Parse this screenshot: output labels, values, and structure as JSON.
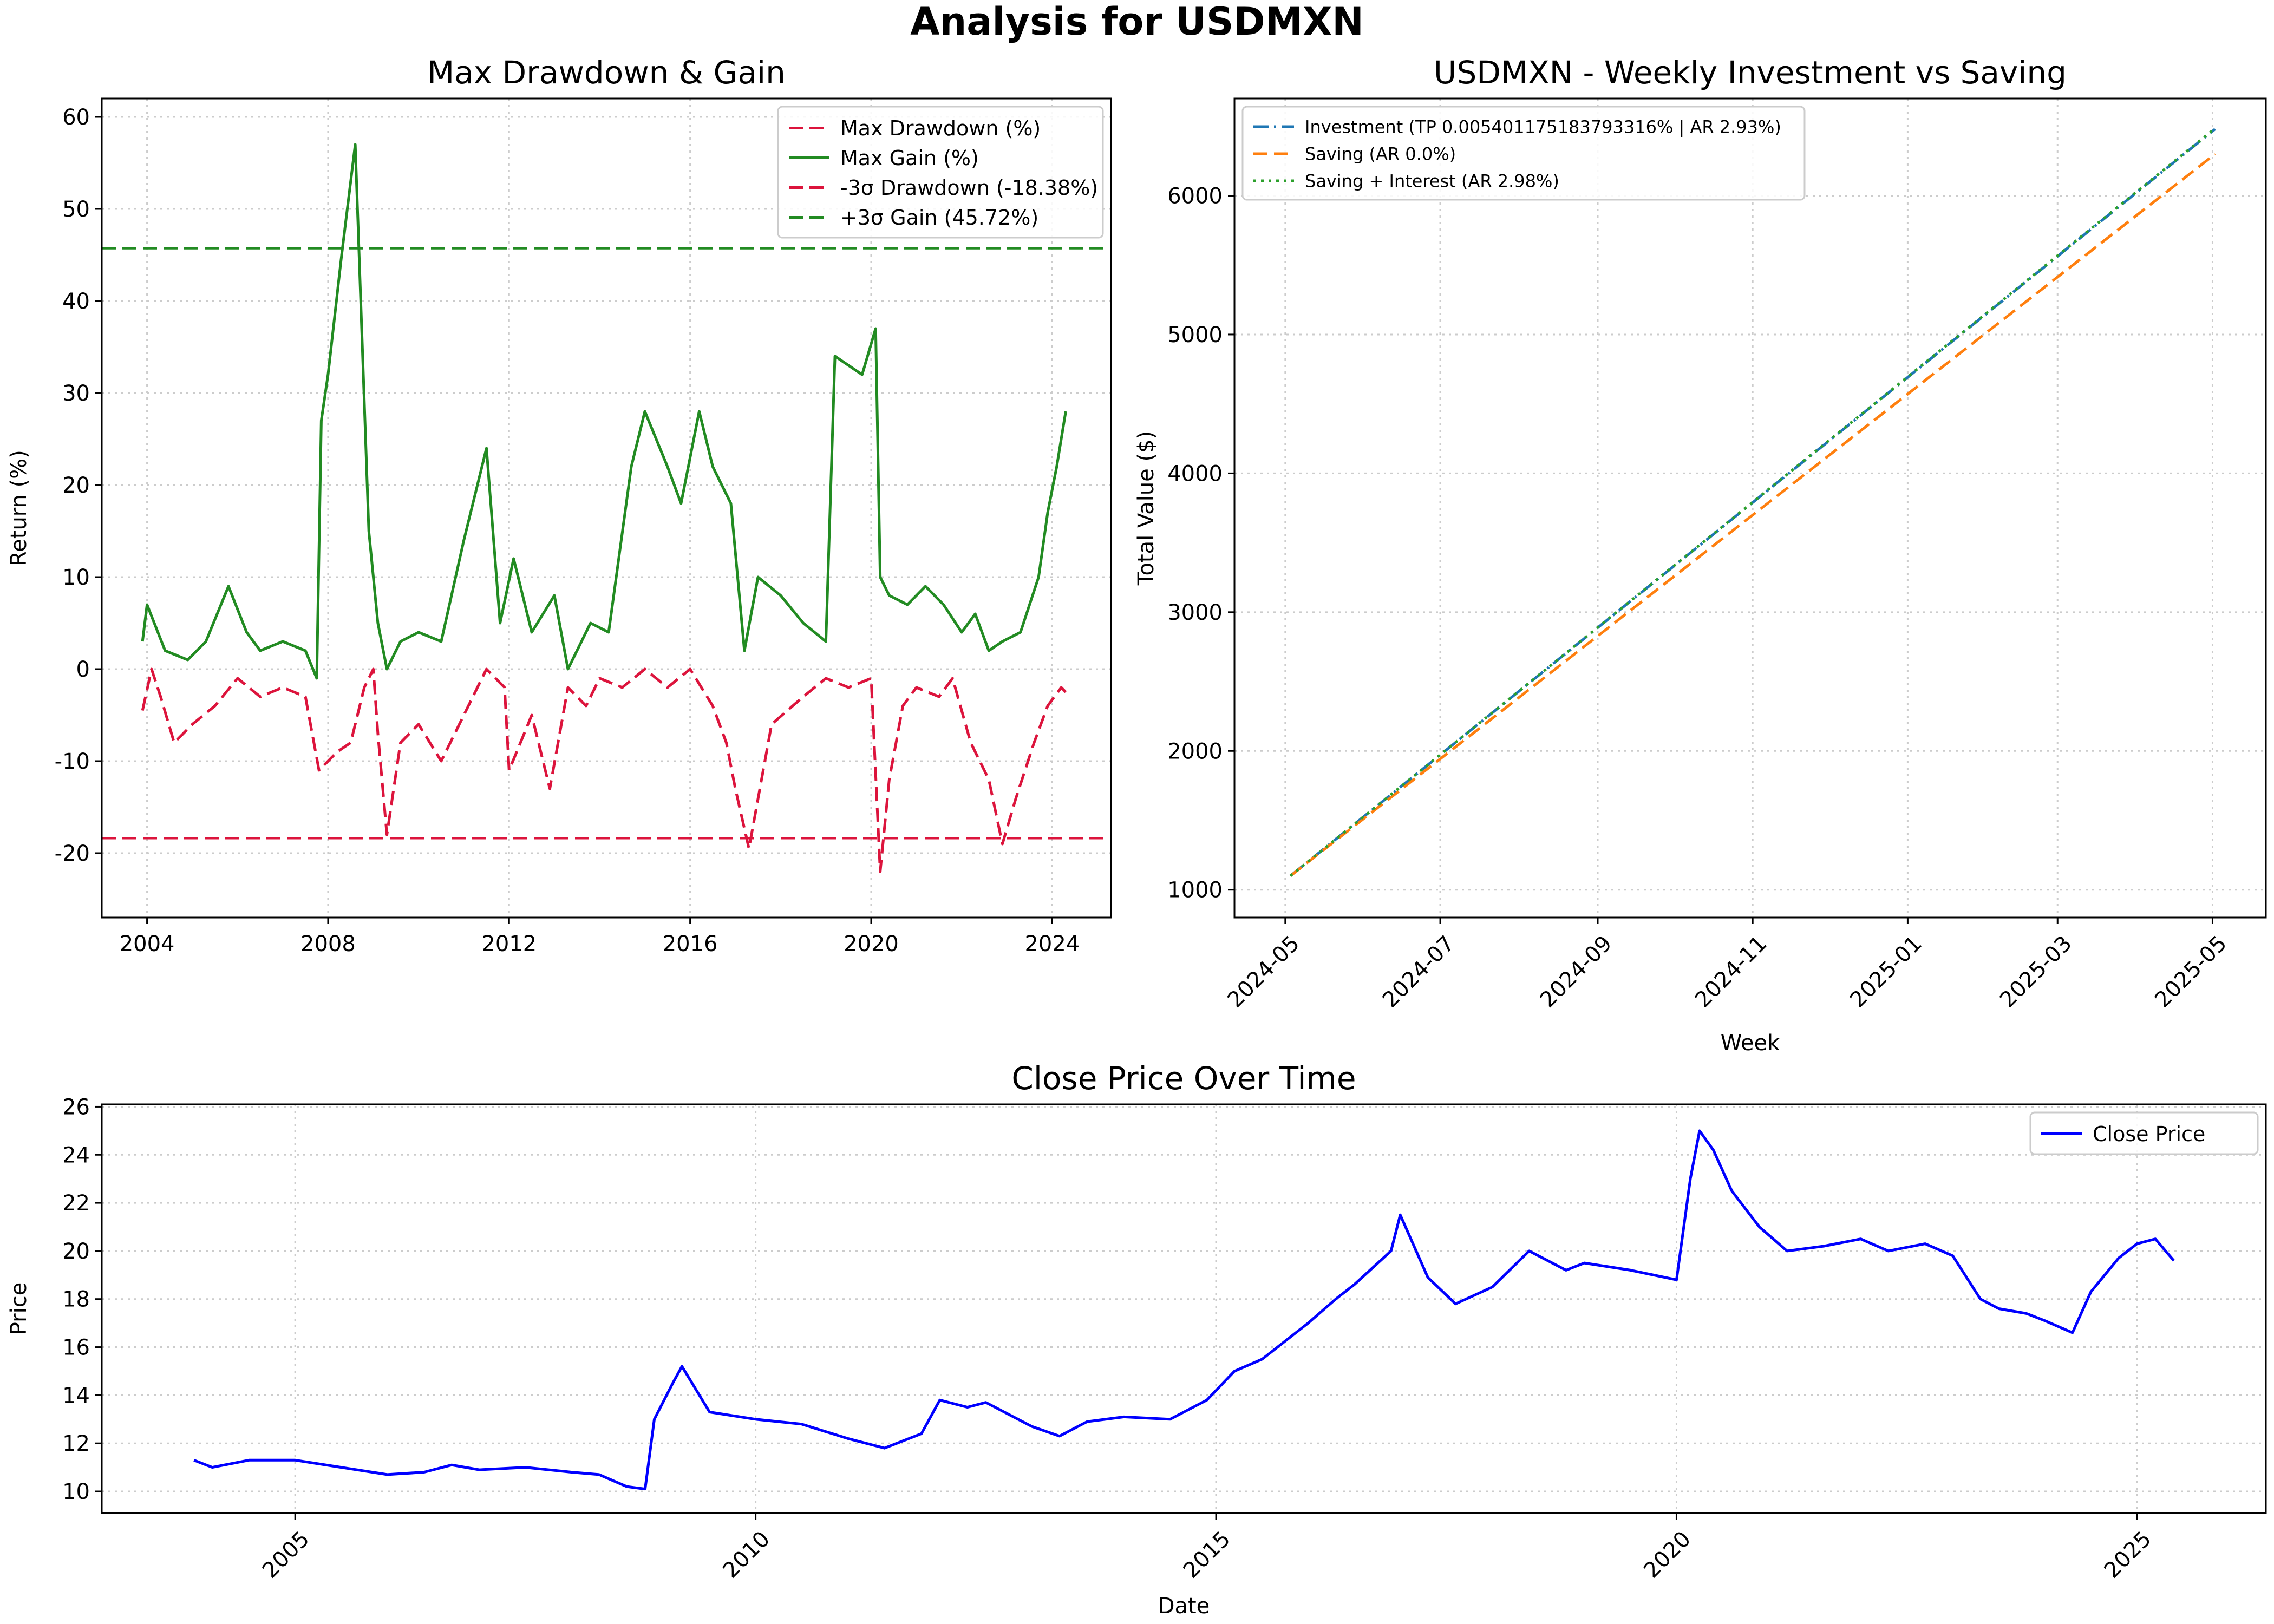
{
  "suptitle": "Analysis for USDMXN",
  "chart_data": [
    {
      "type": "line",
      "title": "Max Drawdown & Gain",
      "xlabel": "",
      "ylabel": "Return (%)",
      "xlim": [
        2003.0,
        2025.3
      ],
      "ylim": [
        -27,
        62
      ],
      "xticks": [
        2004,
        2008,
        2012,
        2016,
        2020,
        2024
      ],
      "xtick_labels": [
        "2004",
        "2008",
        "2012",
        "2016",
        "2020",
        "2024"
      ],
      "yticks": [
        -20,
        -10,
        0,
        10,
        20,
        30,
        40,
        50,
        60
      ],
      "grid": true,
      "legend_position": "top-right",
      "legend": [
        "Max Drawdown (%)",
        "Max Gain (%)",
        "-3σ Drawdown (-18.38%)",
        "+3σ Gain (45.72%)"
      ],
      "hlines": [
        {
          "name": "-3σ Drawdown (-18.38%)",
          "y": -18.38,
          "color": "#dc143c",
          "style": "dashed"
        },
        {
          "name": "+3σ Gain (45.72%)",
          "y": 45.72,
          "color": "#228b22",
          "style": "dashed"
        }
      ],
      "series": [
        {
          "name": "Max Drawdown (%)",
          "color": "#dc143c",
          "style": "dashed",
          "x": [
            2003.9,
            2004.1,
            2004.3,
            2004.6,
            2005.0,
            2005.5,
            2006.0,
            2006.5,
            2007.0,
            2007.5,
            2007.8,
            2008.2,
            2008.5,
            2008.8,
            2009.0,
            2009.1,
            2009.3,
            2009.6,
            2010.0,
            2010.5,
            2011.0,
            2011.5,
            2011.9,
            2012.0,
            2012.5,
            2012.9,
            2013.3,
            2013.7,
            2014.0,
            2014.5,
            2015.0,
            2015.5,
            2016.0,
            2016.5,
            2016.8,
            2017.0,
            2017.3,
            2017.8,
            2018.5,
            2019.0,
            2019.5,
            2020.0,
            2020.2,
            2020.4,
            2020.7,
            2021.0,
            2021.5,
            2021.8,
            2022.2,
            2022.6,
            2022.9,
            2023.2,
            2023.6,
            2023.9,
            2024.2,
            2024.3
          ],
          "y": [
            -4.5,
            0.0,
            -3.0,
            -8.0,
            -6.0,
            -4.0,
            -1.0,
            -3.0,
            -2.0,
            -3.0,
            -11.0,
            -9.0,
            -8.0,
            -2.0,
            0.0,
            -7.0,
            -18.0,
            -8.0,
            -6.0,
            -10.0,
            -5.0,
            0.0,
            -2.0,
            -11.0,
            -5.0,
            -13.0,
            -2.0,
            -4.0,
            -1.0,
            -2.0,
            0.0,
            -2.0,
            0.0,
            -4.0,
            -8.0,
            -13.0,
            -19.5,
            -6.0,
            -3.0,
            -1.0,
            -2.0,
            -1.0,
            -22.0,
            -12.0,
            -4.0,
            -2.0,
            -3.0,
            -1.0,
            -8.0,
            -12.0,
            -19.0,
            -14.0,
            -8.0,
            -4.0,
            -2.0,
            -2.5
          ]
        },
        {
          "name": "Max Gain (%)",
          "color": "#228b22",
          "style": "solid",
          "x": [
            2003.9,
            2004.0,
            2004.4,
            2004.9,
            2005.3,
            2005.8,
            2006.2,
            2006.5,
            2007.0,
            2007.5,
            2007.75,
            2007.85,
            2008.0,
            2008.3,
            2008.6,
            2008.9,
            2009.1,
            2009.3,
            2009.6,
            2010.0,
            2010.5,
            2011.0,
            2011.5,
            2011.8,
            2012.1,
            2012.5,
            2013.0,
            2013.3,
            2013.8,
            2014.2,
            2014.7,
            2015.0,
            2015.5,
            2015.8,
            2016.2,
            2016.5,
            2016.9,
            2017.2,
            2017.5,
            2018.0,
            2018.5,
            2019.0,
            2019.2,
            2019.5,
            2019.8,
            2020.1,
            2020.2,
            2020.4,
            2020.8,
            2021.2,
            2021.6,
            2022.0,
            2022.3,
            2022.6,
            2022.9,
            2023.3,
            2023.7,
            2023.9,
            2024.1,
            2024.3
          ],
          "y": [
            3.0,
            7.0,
            2.0,
            1.0,
            3.0,
            9.0,
            4.0,
            2.0,
            3.0,
            2.0,
            -1.0,
            27.0,
            32.0,
            45.0,
            57.0,
            15.0,
            5.0,
            0.0,
            3.0,
            4.0,
            3.0,
            14.0,
            24.0,
            5.0,
            12.0,
            4.0,
            8.0,
            0.0,
            5.0,
            4.0,
            22.0,
            28.0,
            22.0,
            18.0,
            28.0,
            22.0,
            18.0,
            2.0,
            10.0,
            8.0,
            5.0,
            3.0,
            34.0,
            33.0,
            32.0,
            37.0,
            10.0,
            8.0,
            7.0,
            9.0,
            7.0,
            4.0,
            6.0,
            2.0,
            3.0,
            4.0,
            10.0,
            17.0,
            22.0,
            28.0
          ]
        }
      ]
    },
    {
      "type": "line",
      "title": "USDMXN - Weekly Investment vs Saving",
      "xlabel": "Week",
      "ylabel": "Total Value ($)",
      "xlim": [
        "2024-04-11",
        "2025-05-22"
      ],
      "ylim": [
        800,
        6700
      ],
      "xticks": [
        "2024-05-01",
        "2024-07-01",
        "2024-09-01",
        "2024-11-01",
        "2025-01-01",
        "2025-03-01",
        "2025-05-01"
      ],
      "xtick_labels": [
        "2024-05",
        "2024-07",
        "2024-09",
        "2024-11",
        "2025-01",
        "2025-03",
        "2025-05"
      ],
      "yticks": [
        1000,
        2000,
        3000,
        4000,
        5000,
        6000
      ],
      "grid": true,
      "legend_position": "top-left",
      "legend": [
        "Investment (TP 0.005401175183793316% | AR 2.93%)",
        "Saving (AR 0.0%)",
        "Saving + Interest (AR 2.98%)"
      ],
      "series": [
        {
          "name": "Investment (TP 0.005401175183793316% | AR 2.93%)",
          "color": "#1f77b4",
          "style": "dashdot",
          "x": [
            "2024-05-03",
            "2025-05-02"
          ],
          "y": [
            1100,
            6480
          ]
        },
        {
          "name": "Saving (AR 0.0%)",
          "color": "#ff7f0e",
          "style": "dashed",
          "x": [
            "2024-05-03",
            "2025-05-02"
          ],
          "y": [
            1100,
            6300
          ]
        },
        {
          "name": "Saving + Interest (AR 2.98%)",
          "color": "#2ca02c",
          "style": "dotted",
          "x": [
            "2024-05-03",
            "2025-05-02"
          ],
          "y": [
            1100,
            6485
          ]
        }
      ]
    },
    {
      "type": "line",
      "title": "Close Price Over Time",
      "xlabel": "Date",
      "ylabel": "Price",
      "xlim": [
        2002.9,
        2026.4
      ],
      "ylim": [
        9.1,
        26.1
      ],
      "xticks": [
        2005,
        2010,
        2015,
        2020,
        2025
      ],
      "xtick_labels": [
        "2005",
        "2010",
        "2015",
        "2020",
        "2025"
      ],
      "yticks": [
        10,
        12,
        14,
        16,
        18,
        20,
        22,
        24,
        26
      ],
      "grid": true,
      "legend_position": "top-right",
      "legend": [
        "Close Price"
      ],
      "series": [
        {
          "name": "Close Price",
          "color": "#0000ff",
          "style": "solid",
          "x": [
            2003.9,
            2004.1,
            2004.5,
            2005.0,
            2005.5,
            2006.0,
            2006.4,
            2006.7,
            2007.0,
            2007.5,
            2008.0,
            2008.3,
            2008.6,
            2008.8,
            2008.9,
            2009.1,
            2009.2,
            2009.5,
            2010.0,
            2010.5,
            2011.0,
            2011.4,
            2011.8,
            2012.0,
            2012.3,
            2012.5,
            2013.0,
            2013.3,
            2013.6,
            2014.0,
            2014.5,
            2014.9,
            2015.2,
            2015.5,
            2016.0,
            2016.3,
            2016.5,
            2016.9,
            2017.0,
            2017.3,
            2017.6,
            2018.0,
            2018.4,
            2018.8,
            2019.0,
            2019.5,
            2020.0,
            2020.15,
            2020.25,
            2020.4,
            2020.6,
            2020.9,
            2021.2,
            2021.6,
            2022.0,
            2022.3,
            2022.7,
            2023.0,
            2023.3,
            2023.5,
            2023.8,
            2024.0,
            2024.3,
            2024.5,
            2024.8,
            2025.0,
            2025.2,
            2025.4
          ],
          "y": [
            11.3,
            11.0,
            11.3,
            11.3,
            11.0,
            10.7,
            10.8,
            11.1,
            10.9,
            11.0,
            10.8,
            10.7,
            10.2,
            10.1,
            13.0,
            14.5,
            15.2,
            13.3,
            13.0,
            12.8,
            12.2,
            11.8,
            12.4,
            13.8,
            13.5,
            13.7,
            12.7,
            12.3,
            12.9,
            13.1,
            13.0,
            13.8,
            15.0,
            15.5,
            17.0,
            18.0,
            18.6,
            20.0,
            21.5,
            18.9,
            17.8,
            18.5,
            20.0,
            19.2,
            19.5,
            19.2,
            18.8,
            23.0,
            25.0,
            24.2,
            22.5,
            21.0,
            20.0,
            20.2,
            20.5,
            20.0,
            20.3,
            19.8,
            18.0,
            17.6,
            17.4,
            17.1,
            16.6,
            18.3,
            19.7,
            20.3,
            20.5,
            19.6
          ]
        }
      ]
    }
  ]
}
